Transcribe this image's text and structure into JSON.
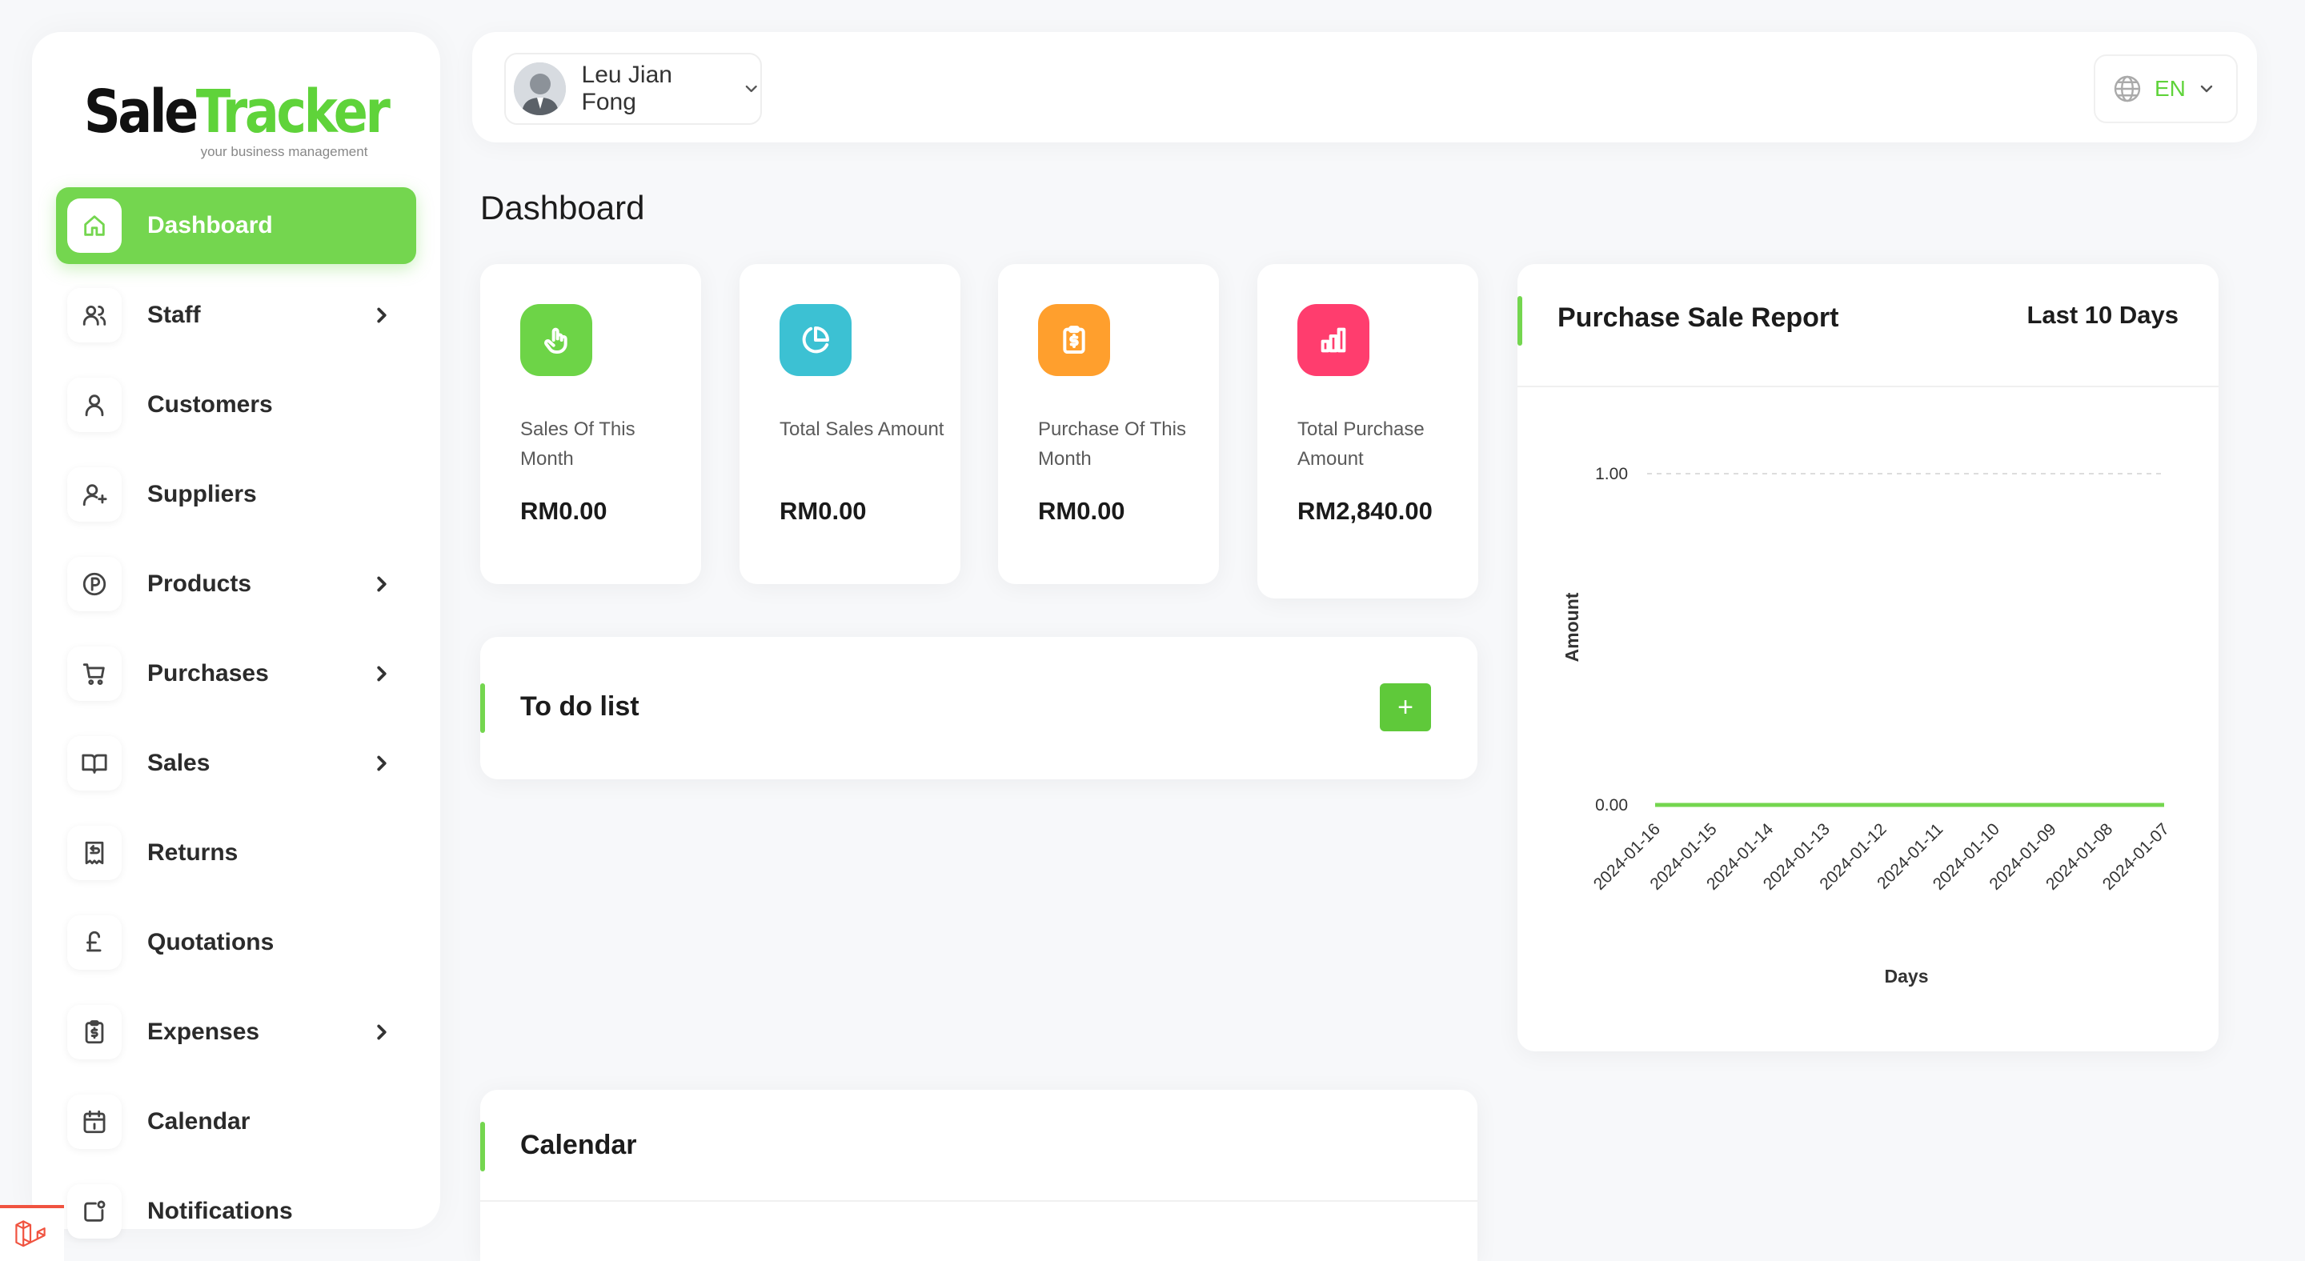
{
  "app": {
    "logo_part1": "Sale",
    "logo_part2": "Tracker",
    "tagline": "your business management"
  },
  "colors": {
    "accent": "#74d64f",
    "sales_month_icon": "#6dd447",
    "total_sales_icon": "#3cc1d3",
    "purchase_month_icon": "#ff9f2d",
    "total_purchase_icon": "#ff3d6e",
    "laravel": "#f05340"
  },
  "sidebar": {
    "items": [
      {
        "label": "Dashboard",
        "icon": "home-icon",
        "active": true,
        "has_submenu": false
      },
      {
        "label": "Staff",
        "icon": "users-icon",
        "active": false,
        "has_submenu": true
      },
      {
        "label": "Customers",
        "icon": "user-icon",
        "active": false,
        "has_submenu": false
      },
      {
        "label": "Suppliers",
        "icon": "user-plus-icon",
        "active": false,
        "has_submenu": false
      },
      {
        "label": "Products",
        "icon": "parking-circle-icon",
        "active": false,
        "has_submenu": true
      },
      {
        "label": "Purchases",
        "icon": "shopping-cart-icon",
        "active": false,
        "has_submenu": true
      },
      {
        "label": "Sales",
        "icon": "open-book-icon",
        "active": false,
        "has_submenu": true
      },
      {
        "label": "Returns",
        "icon": "receipt-return-icon",
        "active": false,
        "has_submenu": false
      },
      {
        "label": "Quotations",
        "icon": "pound-icon",
        "active": false,
        "has_submenu": false
      },
      {
        "label": "Expenses",
        "icon": "clipboard-dollar-icon",
        "active": false,
        "has_submenu": true
      },
      {
        "label": "Calendar",
        "icon": "calendar-icon",
        "active": false,
        "has_submenu": false
      },
      {
        "label": "Notifications",
        "icon": "notification-icon",
        "active": false,
        "has_submenu": false
      }
    ]
  },
  "header": {
    "user_name": "Leu Jian Fong",
    "language": "EN"
  },
  "page": {
    "title": "Dashboard"
  },
  "stats": [
    {
      "label": "Sales Of This Month",
      "value": "RM0.00",
      "icon": "hand-pointer-icon"
    },
    {
      "label": "Total Sales Amount",
      "value": "RM0.00",
      "icon": "pie-chart-icon"
    },
    {
      "label": "Purchase Of This Month",
      "value": "RM0.00",
      "icon": "clipboard-dollar-icon"
    },
    {
      "label": "Total Purchase Amount",
      "value": "RM2,840.00",
      "icon": "bar-chart-icon"
    }
  ],
  "todo": {
    "title": "To do list",
    "add_label": "+"
  },
  "calendar": {
    "title": "Calendar"
  },
  "report": {
    "title": "Purchase Sale Report",
    "range": "Last 10 Days"
  },
  "chart_data": {
    "type": "line",
    "categories": [
      "2024-01-16",
      "2024-01-15",
      "2024-01-14",
      "2024-01-13",
      "2024-01-12",
      "2024-01-11",
      "2024-01-10",
      "2024-01-09",
      "2024-01-08",
      "2024-01-07"
    ],
    "series": [
      {
        "values": [
          0,
          0,
          0,
          0,
          0,
          0,
          0,
          0,
          0,
          0
        ],
        "color": "#74d64f"
      }
    ],
    "xlabel": "Days",
    "ylabel": "Amount",
    "yticks": [
      "0.00",
      "1.00"
    ],
    "ylim": [
      0,
      1
    ],
    "grid": true
  }
}
